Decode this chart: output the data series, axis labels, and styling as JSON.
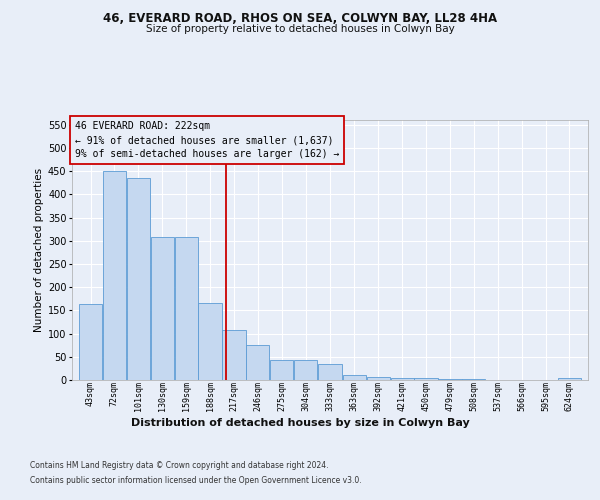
{
  "title1": "46, EVERARD ROAD, RHOS ON SEA, COLWYN BAY, LL28 4HA",
  "title2": "Size of property relative to detached houses in Colwyn Bay",
  "xlabel": "Distribution of detached houses by size in Colwyn Bay",
  "ylabel": "Number of detached properties",
  "footnote1": "Contains HM Land Registry data © Crown copyright and database right 2024.",
  "footnote2": "Contains public sector information licensed under the Open Government Licence v3.0.",
  "annotation_title": "46 EVERARD ROAD: 222sqm",
  "annotation_line1": "← 91% of detached houses are smaller (1,637)",
  "annotation_line2": "9% of semi-detached houses are larger (162) →",
  "bar_labels": [
    "43sqm",
    "72sqm",
    "101sqm",
    "130sqm",
    "159sqm",
    "188sqm",
    "217sqm",
    "246sqm",
    "275sqm",
    "304sqm",
    "333sqm",
    "363sqm",
    "392sqm",
    "421sqm",
    "450sqm",
    "479sqm",
    "508sqm",
    "537sqm",
    "566sqm",
    "595sqm",
    "624sqm"
  ],
  "bar_values": [
    163,
    450,
    435,
    307,
    307,
    165,
    107,
    75,
    44,
    44,
    35,
    11,
    7,
    5,
    5,
    2,
    2,
    1,
    1,
    1,
    5
  ],
  "bar_edges": [
    43,
    72,
    101,
    130,
    159,
    188,
    217,
    246,
    275,
    304,
    333,
    363,
    392,
    421,
    450,
    479,
    508,
    537,
    566,
    595,
    624,
    653
  ],
  "bar_color": "#c5d8f0",
  "bar_edge_color": "#5b9bd5",
  "vline_x": 222,
  "vline_color": "#cc0000",
  "bg_color": "#e8eef8",
  "grid_color": "#ffffff",
  "ylim_max": 560,
  "yticks": [
    0,
    50,
    100,
    150,
    200,
    250,
    300,
    350,
    400,
    450,
    500,
    550
  ]
}
